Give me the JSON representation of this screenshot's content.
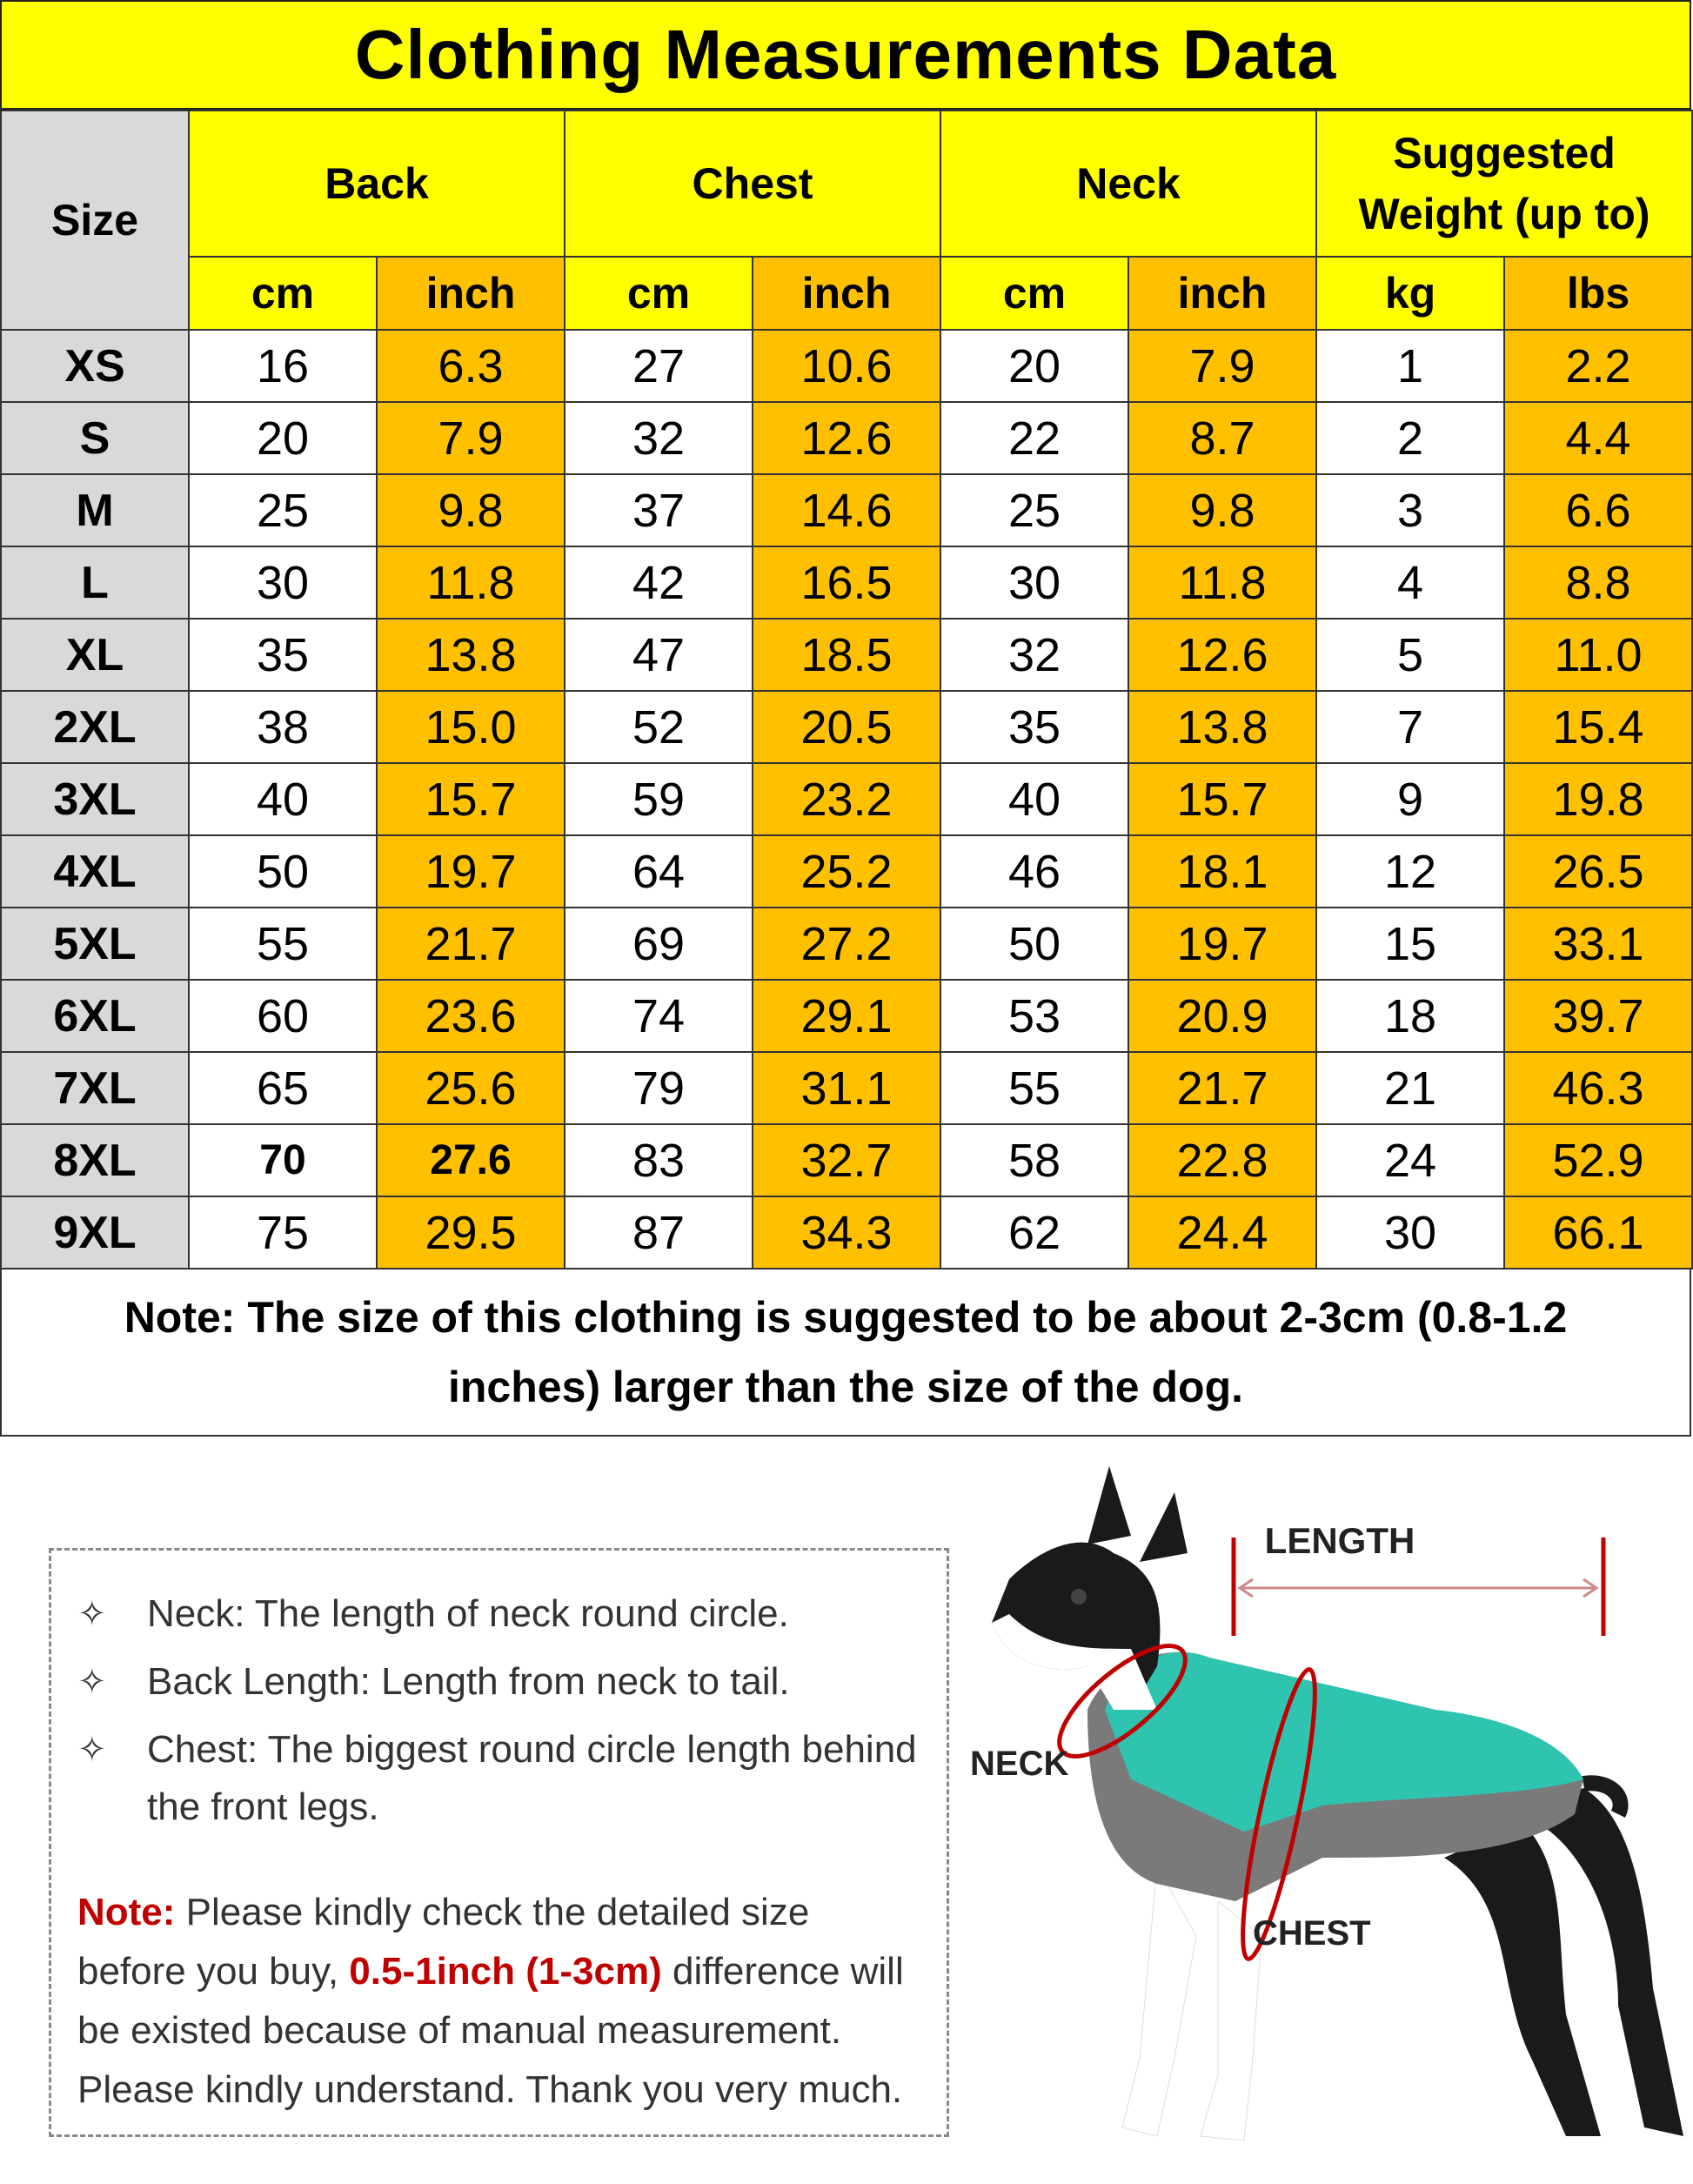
{
  "title": "Clothing Measurements Data",
  "headers": {
    "size": "Size",
    "groups": [
      "Back",
      "Chest",
      "Neck",
      "Suggested Weight (up to)"
    ],
    "units": [
      "cm",
      "inch",
      "cm",
      "inch",
      "cm",
      "inch",
      "kg",
      "lbs"
    ]
  },
  "rows": [
    {
      "size": "XS",
      "values": [
        "16",
        "6.3",
        "27",
        "10.6",
        "20",
        "7.9",
        "1",
        "2.2"
      ]
    },
    {
      "size": "S",
      "values": [
        "20",
        "7.9",
        "32",
        "12.6",
        "22",
        "8.7",
        "2",
        "4.4"
      ]
    },
    {
      "size": "M",
      "values": [
        "25",
        "9.8",
        "37",
        "14.6",
        "25",
        "9.8",
        "3",
        "6.6"
      ]
    },
    {
      "size": "L",
      "values": [
        "30",
        "11.8",
        "42",
        "16.5",
        "30",
        "11.8",
        "4",
        "8.8"
      ]
    },
    {
      "size": "XL",
      "values": [
        "35",
        "13.8",
        "47",
        "18.5",
        "32",
        "12.6",
        "5",
        "11.0"
      ]
    },
    {
      "size": "2XL",
      "values": [
        "38",
        "15.0",
        "52",
        "20.5",
        "35",
        "13.8",
        "7",
        "15.4"
      ]
    },
    {
      "size": "3XL",
      "values": [
        "40",
        "15.7",
        "59",
        "23.2",
        "40",
        "15.7",
        "9",
        "19.8"
      ]
    },
    {
      "size": "4XL",
      "values": [
        "50",
        "19.7",
        "64",
        "25.2",
        "46",
        "18.1",
        "12",
        "26.5"
      ]
    },
    {
      "size": "5XL",
      "values": [
        "55",
        "21.7",
        "69",
        "27.2",
        "50",
        "19.7",
        "15",
        "33.1"
      ]
    },
    {
      "size": "6XL",
      "values": [
        "60",
        "23.6",
        "74",
        "29.1",
        "53",
        "20.9",
        "18",
        "39.7"
      ]
    },
    {
      "size": "7XL",
      "values": [
        "65",
        "25.6",
        "79",
        "31.1",
        "55",
        "21.7",
        "21",
        "46.3"
      ]
    },
    {
      "size": "8XL",
      "values": [
        "70",
        "27.6",
        "83",
        "32.7",
        "58",
        "22.8",
        "24",
        "52.9"
      ]
    },
    {
      "size": "9XL",
      "values": [
        "75",
        "29.5",
        "87",
        "34.3",
        "62",
        "24.4",
        "30",
        "66.1"
      ]
    }
  ],
  "table_note": "Note: The size of this clothing is suggested to be about 2-3cm (0.8-1.2 inches) larger than the size of the dog.",
  "guide": {
    "icon": "four-point-star-icon",
    "items": [
      "Neck: The length of neck round circle.",
      "Back Length: Length from neck to tail.",
      "Chest: The biggest round circle length behind the front legs."
    ],
    "note_label": "Note:",
    "note_text_1": " Please kindly check the detailed size before you buy, ",
    "note_highlight": "0.5-1inch (1-3cm)",
    "note_text_2": " difference will be existed because of manual measurement. Please kindly understand. Thank you very much."
  },
  "diagram": {
    "length": "LENGTH",
    "neck": "NECK",
    "chest": "CHEST"
  },
  "colors": {
    "yellow": "#ffff00",
    "orange": "#ffc000",
    "gray": "#d9d9d9",
    "red": "#c00000",
    "teal": "#2ec4b0"
  }
}
